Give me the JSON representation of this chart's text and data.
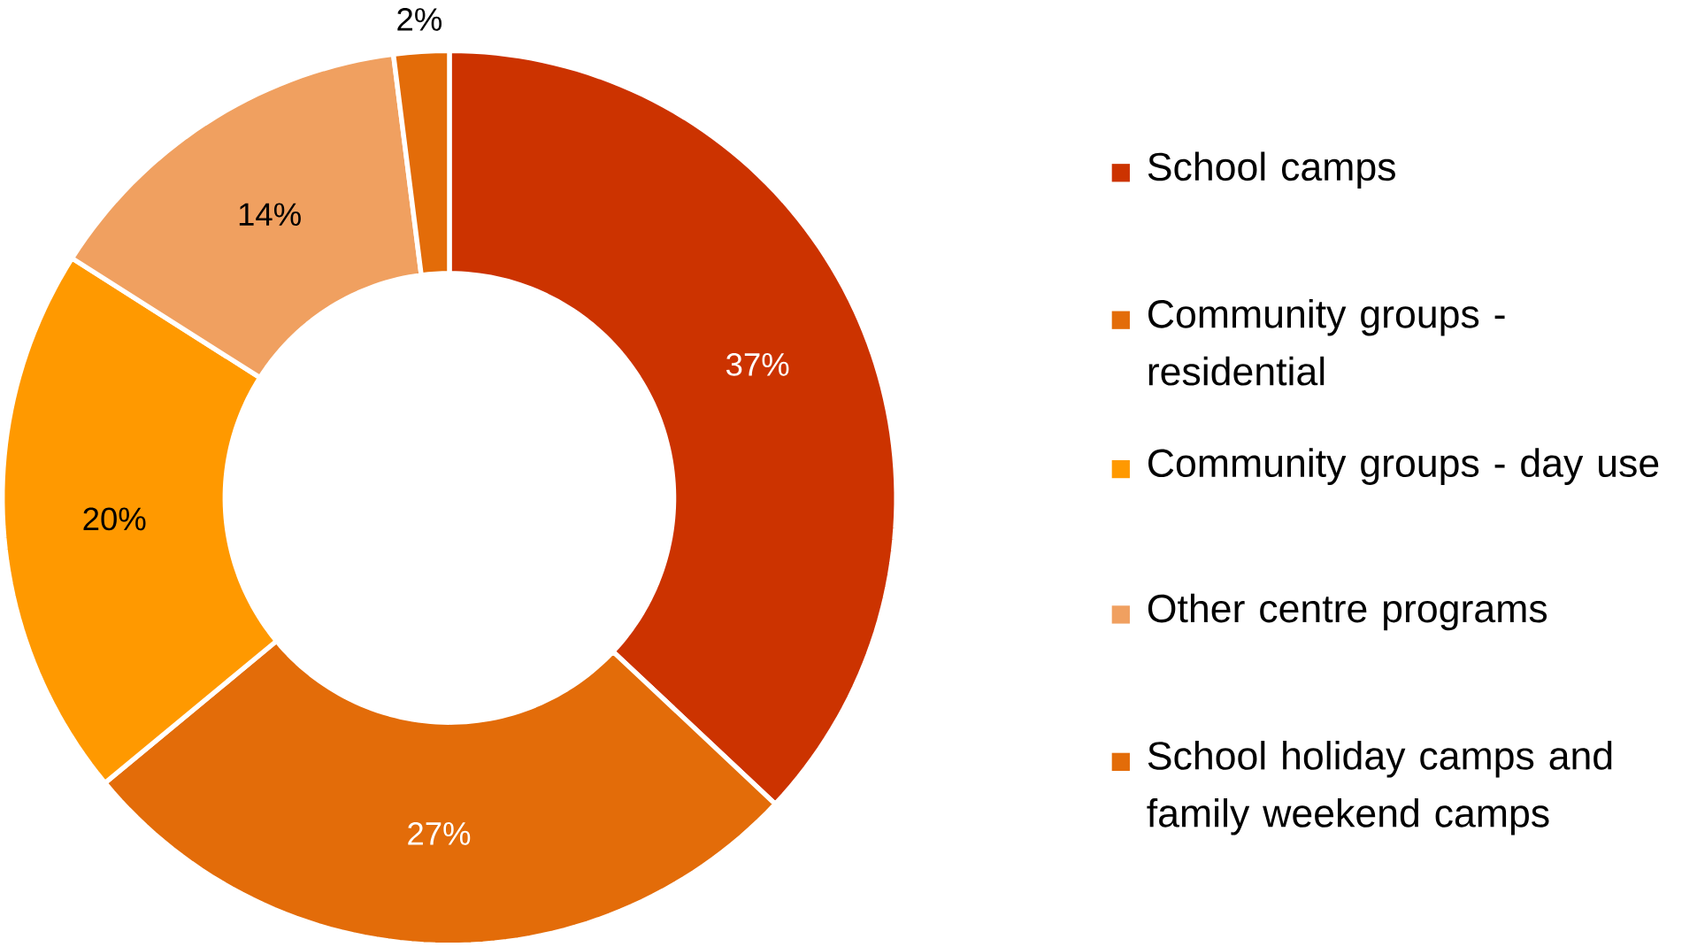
{
  "chart_data": {
    "type": "donut",
    "categories": [
      "School camps",
      "Community groups - residential",
      "Community groups - day use",
      "Other centre programs",
      "School holiday camps and family weekend camps"
    ],
    "values": [
      37,
      27,
      20,
      14,
      2
    ],
    "value_labels": [
      "37%",
      "27%",
      "20%",
      "14%",
      "2%"
    ],
    "colors": [
      "#cc3300",
      "#e36c09",
      "#ff9900",
      "#f0a060",
      "#e36c09"
    ],
    "legend": "right"
  }
}
